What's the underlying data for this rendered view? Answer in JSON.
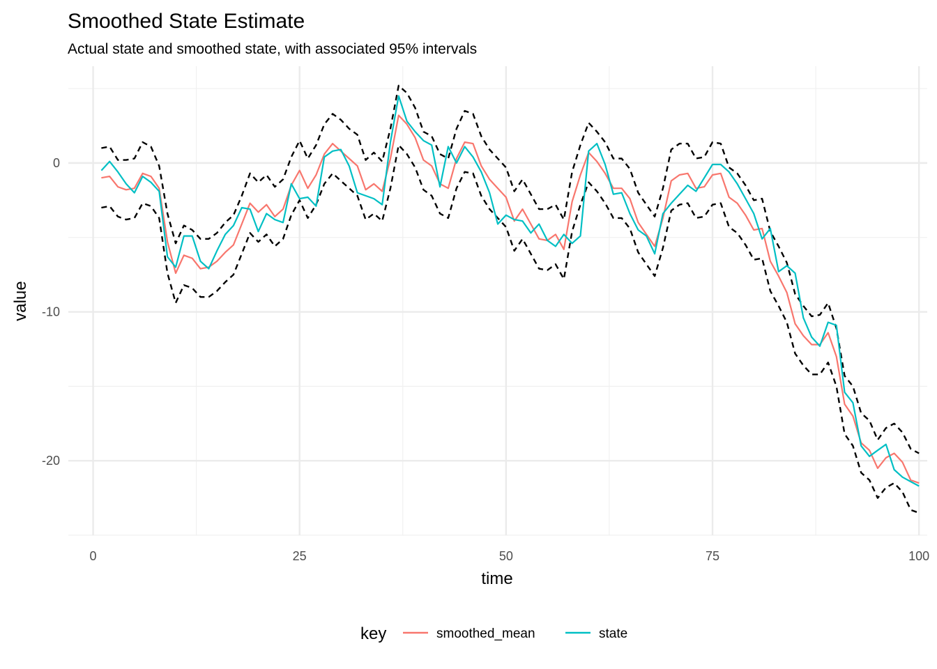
{
  "chart_data": {
    "type": "line",
    "title": "Smoothed State Estimate",
    "subtitle": "Actual state and smoothed state, with associated 95% intervals",
    "xlabel": "time",
    "ylabel": "value",
    "xlim": [
      -3,
      101
    ],
    "ylim": [
      -25,
      6.5
    ],
    "x_ticks": [
      0,
      25,
      50,
      75,
      100
    ],
    "x_tick_labels": [
      "0",
      "25",
      "50",
      "75",
      "100"
    ],
    "y_ticks": [
      0,
      -10,
      -20
    ],
    "y_tick_labels": [
      "0",
      "-10",
      "-20"
    ],
    "grid": true,
    "legend": {
      "title": "key",
      "position": "bottom",
      "entries": [
        {
          "label": "smoothed_mean",
          "color": "#F8766D"
        },
        {
          "label": "state",
          "color": "#00BFC4"
        }
      ]
    },
    "x": [
      1,
      2,
      3,
      4,
      5,
      6,
      7,
      8,
      9,
      10,
      11,
      12,
      13,
      14,
      15,
      16,
      17,
      18,
      19,
      20,
      21,
      22,
      23,
      24,
      25,
      26,
      27,
      28,
      29,
      30,
      31,
      32,
      33,
      34,
      35,
      36,
      37,
      38,
      39,
      40,
      41,
      42,
      43,
      44,
      45,
      46,
      47,
      48,
      49,
      50,
      51,
      52,
      53,
      54,
      55,
      56,
      57,
      58,
      59,
      60,
      61,
      62,
      63,
      64,
      65,
      66,
      67,
      68,
      69,
      70,
      71,
      72,
      73,
      74,
      75,
      76,
      77,
      78,
      79,
      80,
      81,
      82,
      83,
      84,
      85,
      86,
      87,
      88,
      89,
      90,
      91,
      92,
      93,
      94,
      95,
      96,
      97,
      98,
      99,
      100
    ],
    "series": [
      {
        "name": "smoothed_mean",
        "color": "#F8766D",
        "values": [
          -1.0,
          -0.9,
          -1.6,
          -1.8,
          -1.7,
          -0.7,
          -0.9,
          -1.7,
          -5.3,
          -7.4,
          -6.2,
          -6.4,
          -7.1,
          -7.0,
          -6.6,
          -6.0,
          -5.5,
          -4.1,
          -2.7,
          -3.3,
          -2.8,
          -3.6,
          -3.1,
          -1.5,
          -0.5,
          -1.7,
          -0.8,
          0.6,
          1.3,
          0.8,
          0.3,
          -0.2,
          -1.8,
          -1.4,
          -1.9,
          0.3,
          3.2,
          2.6,
          1.7,
          0.2,
          -0.2,
          -1.4,
          -1.7,
          0.3,
          1.4,
          1.3,
          -0.2,
          -1.1,
          -1.7,
          -2.3,
          -3.9,
          -3.1,
          -4.1,
          -5.1,
          -5.2,
          -4.8,
          -5.8,
          -2.6,
          -0.8,
          0.7,
          0.1,
          -0.7,
          -1.7,
          -1.7,
          -2.4,
          -4.0,
          -4.8,
          -5.6,
          -3.7,
          -1.2,
          -0.8,
          -0.7,
          -1.7,
          -1.6,
          -0.8,
          -0.7,
          -2.3,
          -2.7,
          -3.5,
          -4.5,
          -4.4,
          -6.6,
          -7.6,
          -8.7,
          -10.8,
          -11.6,
          -12.2,
          -12.2,
          -11.4,
          -13.0,
          -16.2,
          -17.0,
          -18.8,
          -19.3,
          -20.5,
          -19.8,
          -19.5,
          -20.1,
          -21.3,
          -21.5
        ]
      },
      {
        "name": "state",
        "color": "#00BFC4",
        "values": [
          -0.5,
          0.1,
          -0.6,
          -1.4,
          -2.0,
          -0.9,
          -1.3,
          -1.9,
          -6.3,
          -7.0,
          -4.9,
          -4.9,
          -6.6,
          -7.1,
          -5.9,
          -4.8,
          -4.2,
          -3.0,
          -3.1,
          -4.6,
          -3.4,
          -3.8,
          -4.0,
          -1.4,
          -2.4,
          -2.3,
          -2.9,
          0.4,
          0.8,
          0.9,
          -0.2,
          -2.0,
          -2.2,
          -2.4,
          -2.8,
          1.4,
          4.5,
          2.8,
          2.1,
          1.5,
          1.2,
          -1.6,
          1.1,
          0.0,
          1.1,
          0.4,
          -0.6,
          -2.0,
          -4.1,
          -3.5,
          -3.8,
          -3.9,
          -4.7,
          -4.1,
          -5.2,
          -5.6,
          -4.8,
          -5.4,
          -4.9,
          0.8,
          1.3,
          -0.1,
          -2.1,
          -2.0,
          -3.4,
          -4.5,
          -4.9,
          -6.1,
          -3.4,
          -2.7,
          -2.1,
          -1.5,
          -1.9,
          -1.0,
          -0.1,
          -0.1,
          -0.6,
          -1.4,
          -2.4,
          -3.4,
          -5.1,
          -4.4,
          -7.3,
          -6.9,
          -7.4,
          -10.4,
          -11.7,
          -12.3,
          -10.7,
          -10.9,
          -15.4,
          -16.1,
          -19.0,
          -19.7,
          -19.3,
          -18.9,
          -20.6,
          -21.1,
          -21.4,
          -21.7
        ]
      },
      {
        "name": "",
        "color": "#000000",
        "dashed": true,
        "values": [
          1.0,
          1.1,
          0.2,
          0.2,
          0.3,
          1.4,
          1.1,
          -0.2,
          -3.4,
          -5.4,
          -4.2,
          -4.5,
          -5.1,
          -5.1,
          -4.7,
          -4.0,
          -3.5,
          -2.2,
          -0.7,
          -1.3,
          -0.8,
          -1.6,
          -1.1,
          0.4,
          1.5,
          0.3,
          1.2,
          2.6,
          3.3,
          2.9,
          2.3,
          1.9,
          0.2,
          0.7,
          0.1,
          2.3,
          5.2,
          4.7,
          3.7,
          2.1,
          1.8,
          0.6,
          0.3,
          2.3,
          3.5,
          3.3,
          1.8,
          0.9,
          0.3,
          -0.3,
          -1.9,
          -1.1,
          -2.1,
          -3.1,
          -3.1,
          -2.8,
          -3.8,
          -0.6,
          1.2,
          2.7,
          2.1,
          1.4,
          0.3,
          0.3,
          -0.4,
          -2.0,
          -2.8,
          -3.6,
          -1.7,
          0.9,
          1.3,
          1.3,
          0.3,
          0.4,
          1.4,
          1.3,
          -0.3,
          -0.7,
          -1.5,
          -2.5,
          -2.4,
          -4.6,
          -5.6,
          -6.7,
          -8.8,
          -9.6,
          -10.3,
          -10.2,
          -9.4,
          -11.1,
          -14.3,
          -15.0,
          -16.8,
          -17.3,
          -18.6,
          -17.8,
          -17.5,
          -18.1,
          -19.2,
          -19.5
        ]
      },
      {
        "name": "",
        "color": "#000000",
        "dashed": true,
        "values": [
          -3.0,
          -2.9,
          -3.6,
          -3.8,
          -3.7,
          -2.7,
          -2.9,
          -3.7,
          -7.4,
          -9.4,
          -8.2,
          -8.4,
          -9.0,
          -9.0,
          -8.6,
          -8.0,
          -7.5,
          -6.1,
          -4.7,
          -5.3,
          -4.8,
          -5.6,
          -5.1,
          -3.5,
          -2.5,
          -3.7,
          -2.8,
          -1.4,
          -0.7,
          -1.2,
          -1.7,
          -2.2,
          -3.8,
          -3.4,
          -3.9,
          -1.7,
          1.2,
          0.6,
          -0.3,
          -1.8,
          -2.2,
          -3.4,
          -3.7,
          -1.7,
          -0.6,
          -0.7,
          -2.2,
          -3.1,
          -3.7,
          -4.3,
          -5.9,
          -5.1,
          -6.1,
          -7.1,
          -7.2,
          -6.8,
          -7.8,
          -4.6,
          -2.8,
          -1.3,
          -1.9,
          -2.7,
          -3.7,
          -3.7,
          -4.4,
          -6.0,
          -6.8,
          -7.6,
          -5.7,
          -3.2,
          -2.8,
          -2.7,
          -3.7,
          -3.6,
          -2.8,
          -2.7,
          -4.3,
          -4.7,
          -5.5,
          -6.5,
          -6.4,
          -8.6,
          -9.6,
          -10.7,
          -12.8,
          -13.6,
          -14.2,
          -14.2,
          -13.4,
          -15.0,
          -18.2,
          -19.0,
          -20.8,
          -21.3,
          -22.5,
          -21.8,
          -21.5,
          -22.1,
          -23.3,
          -23.5
        ]
      }
    ]
  }
}
